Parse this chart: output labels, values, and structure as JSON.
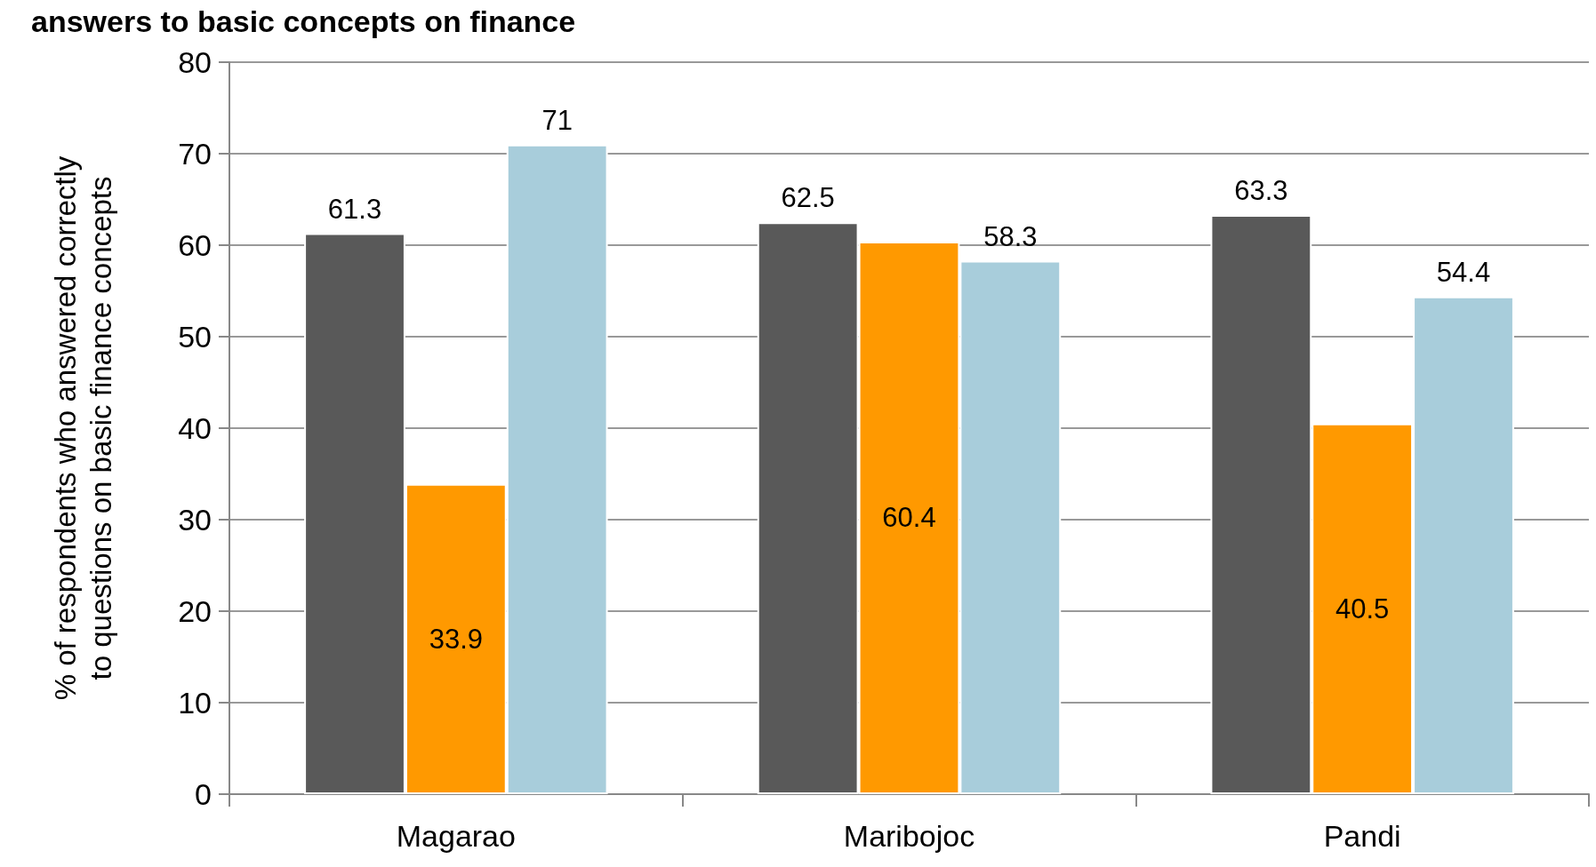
{
  "chart_data": {
    "type": "bar",
    "title": "answers to basic concepts on finance",
    "ylabel": "% of respondents who answered correctly\nto questions on basic finance concepts",
    "categories": [
      "Magarao",
      "Maribojoc",
      "Pandi"
    ],
    "series": [
      {
        "color": "#595959",
        "values": [
          61.3,
          62.5,
          63.3
        ]
      },
      {
        "color": "#ff9900",
        "values": [
          33.9,
          60.4,
          40.5
        ]
      },
      {
        "color": "#a8cddb",
        "values": [
          71,
          58.3,
          54.4
        ]
      }
    ],
    "ylim": [
      0,
      80
    ],
    "yticks": [
      0,
      10,
      20,
      30,
      40,
      50,
      60,
      70,
      80
    ],
    "grid": "y",
    "data_labels": true
  }
}
